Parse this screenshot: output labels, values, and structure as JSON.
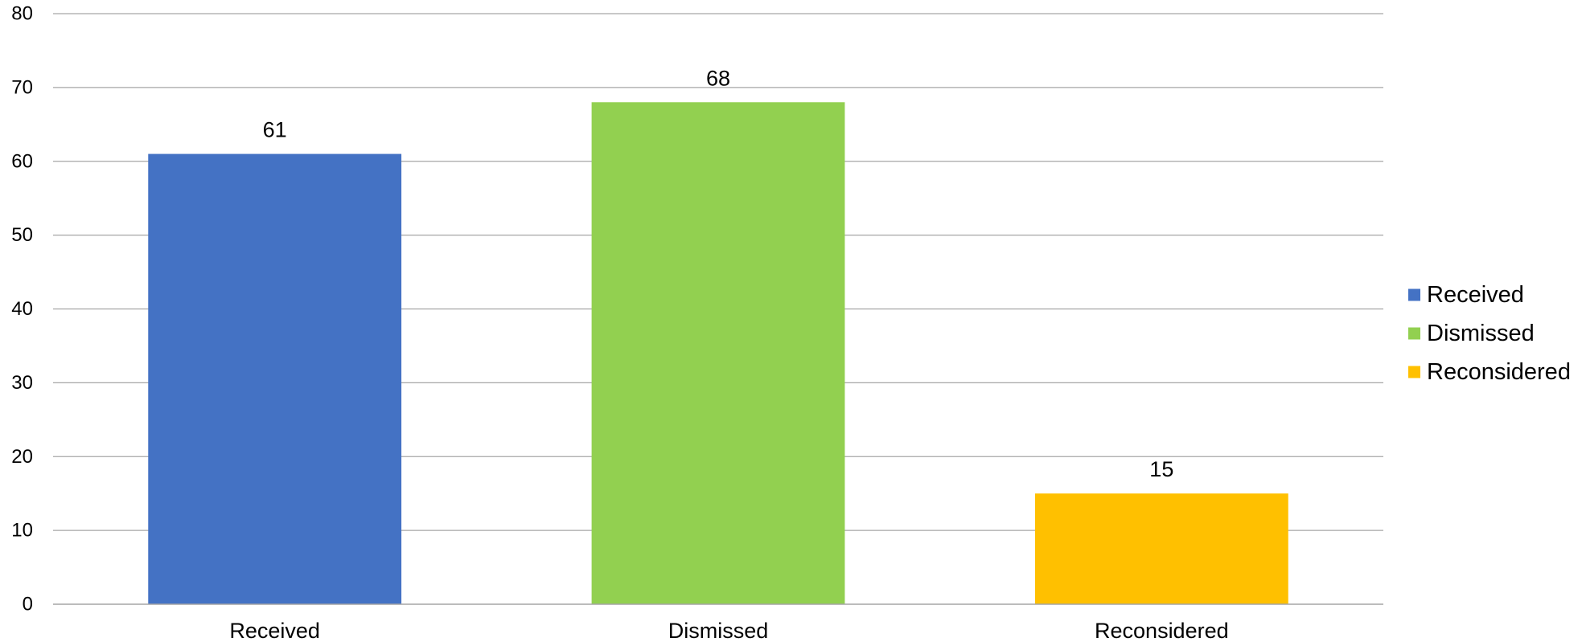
{
  "chart_data": {
    "type": "bar",
    "categories": [
      "Received",
      "Dismissed",
      "Reconsidered"
    ],
    "values": [
      61,
      68,
      15
    ],
    "colors": [
      "#4472c4",
      "#92d050",
      "#ffc000"
    ],
    "data_labels": [
      "61",
      "68",
      "15"
    ],
    "ylim": [
      0,
      80
    ],
    "yticks": [
      "0",
      "10",
      "20",
      "30",
      "40",
      "50",
      "60",
      "70",
      "80"
    ],
    "grid": true,
    "legend": {
      "position": "right",
      "entries": [
        "Received",
        "Dismissed",
        "Reconsidered"
      ]
    },
    "title": "",
    "xlabel": "",
    "ylabel": ""
  }
}
